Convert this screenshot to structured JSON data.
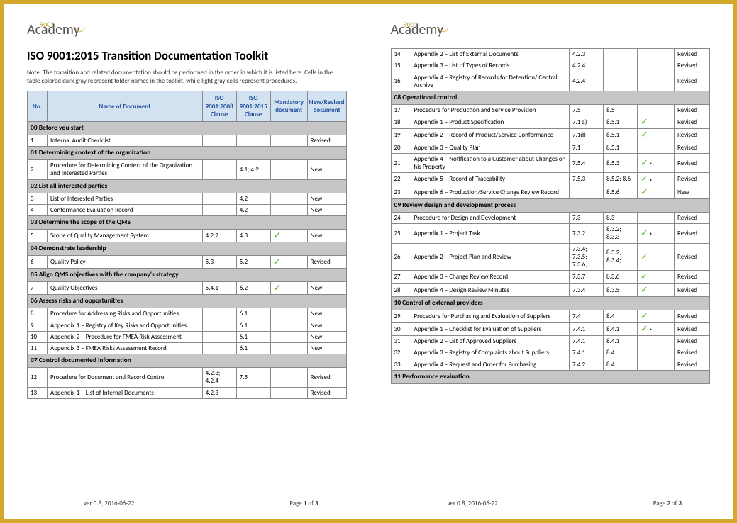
{
  "brand": "Academy",
  "brand_superscript": "9001",
  "title": "ISO 9001:2015 Transition Documentation Toolkit",
  "note": "Note: The transition and related documentation should be performed in the order in which it is listed here. Cells in the table colored dark gray represent folder names in the toolkit, while light gray cells represent procedures.",
  "headers": {
    "no": "No.",
    "name": "Name of Document",
    "c1": "ISO 9001:2008 Clause",
    "c2": "ISO 9001:2015 Clause",
    "mand": "Mandatory document",
    "stat": "New/Revised document"
  },
  "footer_version": "ver 0.8, 2016-06-22",
  "footer_page1": "Page 1 of 3",
  "footer_page2": "Page 2 of 3",
  "page1": [
    {
      "type": "section",
      "label": "00 Before you start"
    },
    {
      "type": "row",
      "no": "1",
      "name": "Internal Audit Checklist",
      "c1": "",
      "c2": "",
      "mand": "",
      "stat": "Revised"
    },
    {
      "type": "section",
      "label": "01 Determining context of the organization"
    },
    {
      "type": "row",
      "no": "2",
      "name": "Procedure for Determining Context of the Organization and Interested Parties",
      "c1": "",
      "c2": "4.1; 4.2",
      "mand": "",
      "stat": "New"
    },
    {
      "type": "section",
      "label": "02 List all interested parties"
    },
    {
      "type": "row",
      "no": "3",
      "name": "List of Interested Parties",
      "c1": "",
      "c2": "4.2",
      "mand": "",
      "stat": "New"
    },
    {
      "type": "row",
      "no": "4",
      "name": "Conformance Evaluation Record",
      "c1": "",
      "c2": "4.2",
      "mand": "",
      "stat": "New"
    },
    {
      "type": "section",
      "label": "03 Determine the scope of the QMS"
    },
    {
      "type": "row",
      "no": "5",
      "name": "Scope of Quality Management System",
      "c1": "4.2.2",
      "c2": "4.3",
      "mand": "check",
      "stat": "New"
    },
    {
      "type": "section",
      "label": "04 Demonstrate leadership"
    },
    {
      "type": "row",
      "no": "6",
      "name": "Quality Policy",
      "c1": "5.3",
      "c2": "5.2",
      "mand": "check",
      "stat": "Revised"
    },
    {
      "type": "section",
      "label": "05 Align QMS objectives with the company's strategy"
    },
    {
      "type": "row",
      "no": "7",
      "name": "Quality Objectives",
      "c1": "5.4.1",
      "c2": "6.2",
      "mand": "check",
      "stat": "New"
    },
    {
      "type": "section",
      "label": "06 Assess risks and opportunities"
    },
    {
      "type": "row",
      "no": "8",
      "name": "Procedure for Addressing Risks and Opportunities",
      "c1": "",
      "c2": "6.1",
      "mand": "",
      "stat": "New"
    },
    {
      "type": "row",
      "no": "9",
      "name": "Appendix 1 – Registry of Key Risks and Opportunities",
      "c1": "",
      "c2": "6.1",
      "mand": "",
      "stat": "New"
    },
    {
      "type": "row",
      "no": "10",
      "name": "Appendix 2 – Procedure for FMEA Risk Assessment",
      "c1": "",
      "c2": "6.1",
      "mand": "",
      "stat": "New"
    },
    {
      "type": "row",
      "no": "11",
      "name": "Appendix 3 – FMEA Risks Assessment Record",
      "c1": "",
      "c2": "6.1",
      "mand": "",
      "stat": "New"
    },
    {
      "type": "section",
      "label": "07 Control documented information"
    },
    {
      "type": "row",
      "no": "12",
      "name": "Procedure for Document and Record Control",
      "c1": "4.2.3; 4.2.4",
      "c2": "7.5",
      "mand": "",
      "stat": "Revised"
    },
    {
      "type": "row",
      "no": "13",
      "name": "Appendix 1 – List of Internal Documents",
      "c1": "4.2.3",
      "c2": "",
      "mand": "",
      "stat": "Revised"
    }
  ],
  "page2": [
    {
      "type": "row",
      "no": "14",
      "name": "Appendix 2 – List of External Documents",
      "c1": "4.2.3",
      "c2": "",
      "mand": "",
      "stat": "Revised"
    },
    {
      "type": "row",
      "no": "15",
      "name": "Appendix 3 – List of Types of Records",
      "c1": "4.2.4",
      "c2": "",
      "mand": "",
      "stat": "Revised"
    },
    {
      "type": "row",
      "no": "16",
      "name": "Appendix 4 – Registry of Records for Detention/ Central Archive",
      "c1": "4.2.4",
      "c2": "",
      "mand": "",
      "stat": "Revised"
    },
    {
      "type": "section",
      "label": "08 Operational control"
    },
    {
      "type": "row",
      "no": "17",
      "name": "Procedure for Production and Service Provision",
      "c1": "7.5",
      "c2": "8.5",
      "mand": "",
      "stat": "Revised"
    },
    {
      "type": "row",
      "no": "18",
      "name": "Appendix 1 – Product Specification",
      "c1": "7.1 a)",
      "c2": "8.5.1",
      "mand": "check",
      "stat": "Revised"
    },
    {
      "type": "row",
      "no": "19",
      "name": "Appendix 2 – Record of Product/Service Conformance",
      "c1": "7.1d)",
      "c2": "8.5.1",
      "mand": "check",
      "stat": "Revised"
    },
    {
      "type": "row",
      "no": "20",
      "name": "Appendix 3 – Quality Plan",
      "c1": "7.1",
      "c2": "8.5.1",
      "mand": "",
      "stat": "Revised"
    },
    {
      "type": "row",
      "no": "21",
      "name": "Appendix 4 – Notification to a Customer about Changes on his Property",
      "c1": "7.5.4",
      "c2": "8.5.3",
      "mand": "checkdot",
      "stat": "Revised"
    },
    {
      "type": "row",
      "no": "22",
      "name": "Appendix 5 – Record of Traceability",
      "c1": "7.5.3",
      "c2": "8.5.2; 8.6",
      "mand": "checkdot",
      "stat": "Revised"
    },
    {
      "type": "row",
      "no": "23",
      "name": "Appendix 6 – Production/Service Change Review Record",
      "c1": "",
      "c2": "8.5.6",
      "mand": "check",
      "stat": "New"
    },
    {
      "type": "section",
      "label": "09 Review design and development process"
    },
    {
      "type": "row",
      "no": "24",
      "name": "Procedure for Design and Development",
      "c1": "7.3",
      "c2": "8.3",
      "mand": "",
      "stat": "Revised"
    },
    {
      "type": "row",
      "no": "25",
      "name": "Appendix 1 – Project Task",
      "c1": "7.3.2",
      "c2": "8.3.2; 8.3.3",
      "mand": "checkdot",
      "stat": "Revised"
    },
    {
      "type": "row",
      "no": "26",
      "name": "Appendix 2 – Project Plan and Review",
      "c1": "7.3.4; 7.3.5; 7.3.6;",
      "c2": "8.3.2; 8.3.4;",
      "mand": "check",
      "stat": "Revised"
    },
    {
      "type": "row",
      "no": "27",
      "name": "Appendix 3 – Change Review Record",
      "c1": "7.3.7",
      "c2": "8.3.6",
      "mand": "check",
      "stat": "Revised"
    },
    {
      "type": "row",
      "no": "28",
      "name": "Appendix 4 – Design Review Minutes",
      "c1": "7.3.4",
      "c2": "8.3.5",
      "mand": "check",
      "stat": "Revised"
    },
    {
      "type": "section",
      "label": "10 Control of external providers"
    },
    {
      "type": "row",
      "no": "29",
      "name": "Procedure for Purchasing and Evaluation of Suppliers",
      "c1": "7.4",
      "c2": "8.4",
      "mand": "check",
      "stat": "Revised"
    },
    {
      "type": "row",
      "no": "30",
      "name": "Appendix 1 – Checklist for Evaluation of Suppliers",
      "c1": "7.4.1",
      "c2": "8.4.1",
      "mand": "checkdot",
      "stat": "Revised"
    },
    {
      "type": "row",
      "no": "31",
      "name": "Appendix 2 – List of Approved Suppliers",
      "c1": "7.4.1",
      "c2": "8.4.1",
      "mand": "",
      "stat": "Revised"
    },
    {
      "type": "row",
      "no": "32",
      "name": "Appendix 3 – Registry of Complaints about Suppliers",
      "c1": "7.4.1",
      "c2": "8.4",
      "mand": "",
      "stat": "Revised"
    },
    {
      "type": "row",
      "no": "33",
      "name": "Appendix 4 – Request and Order for Purchasing",
      "c1": "7.4.2",
      "c2": "8.4",
      "mand": "",
      "stat": "Revised"
    },
    {
      "type": "section",
      "label": "11 Performance evaluation"
    }
  ]
}
